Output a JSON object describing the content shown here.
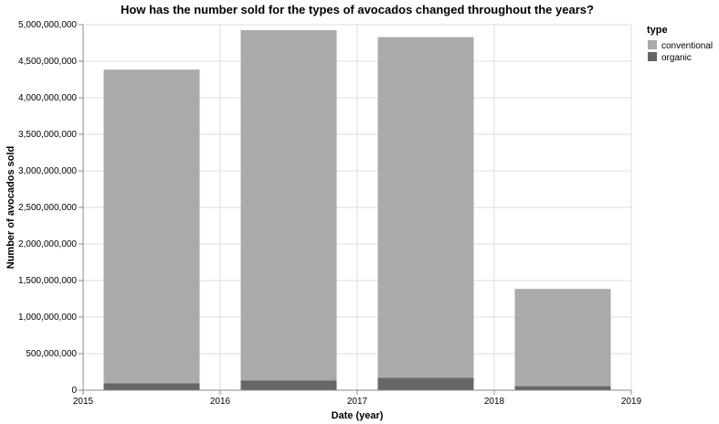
{
  "chart_data": {
    "type": "bar",
    "stacked": true,
    "title": "How has the number sold for the types of avocados changed throughout the years?",
    "xlabel": "Date (year)",
    "ylabel": "Number of avocados sold",
    "x_ticks": [
      "2015",
      "2016",
      "2017",
      "2018",
      "2019"
    ],
    "y_ticks": [
      "0",
      "500,000,000",
      "1,000,000,000",
      "1,500,000,000",
      "2,000,000,000",
      "2,500,000,000",
      "3,000,000,000",
      "3,500,000,000",
      "4,000,000,000",
      "4,500,000,000",
      "5,000,000,000"
    ],
    "ylim": [
      0,
      5000000000
    ],
    "categories": [
      "2015",
      "2016",
      "2017",
      "2018"
    ],
    "series": [
      {
        "name": "conventional",
        "color": "#aaaaaa",
        "values": [
          4290000000,
          4790000000,
          4660000000,
          1330000000
        ]
      },
      {
        "name": "organic",
        "color": "#666666",
        "values": [
          95000000,
          135000000,
          170000000,
          55000000
        ]
      }
    ],
    "grid": true,
    "legend": {
      "title": "type",
      "position": "top-right"
    }
  }
}
